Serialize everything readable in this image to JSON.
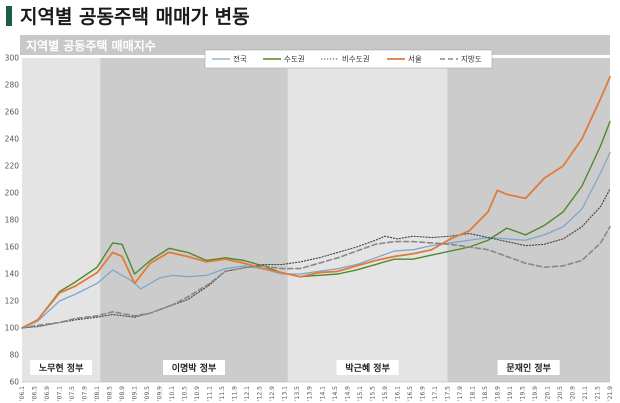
{
  "header": {
    "title": "지역별 공동주택 매매가 변동",
    "accent_color": "#1f5a4c"
  },
  "chart_data": {
    "type": "line",
    "title": "지역별 공동주택 매매지수",
    "ylim": [
      60,
      300
    ],
    "yticks": [
      60,
      80,
      100,
      120,
      140,
      160,
      180,
      200,
      220,
      240,
      260,
      280,
      300
    ],
    "x_range": [
      "'06.1",
      "'21.9"
    ],
    "x_tick_labels": [
      "'06.1",
      "'06.5",
      "'06.9",
      "'07.1",
      "'07.5",
      "'07.9",
      "'08.1",
      "'08.5",
      "'08.9",
      "'09.1",
      "'09.5",
      "'09.9",
      "'10.1",
      "'10.5",
      "'10.9",
      "'11.1",
      "'11.5",
      "'11.9",
      "'12.1",
      "'12.5",
      "'12.9",
      "'13.1",
      "'13.5",
      "'13.9",
      "'14.1",
      "'14.5",
      "'14.9",
      "'15.1",
      "'15.5",
      "'15.9",
      "'16.1",
      "'16.5",
      "'16.9",
      "'17.1",
      "'17.5",
      "'17.9",
      "'18.1",
      "'18.5",
      "'18.9",
      "'19.1",
      "'19.5",
      "'19.9",
      "'20.1",
      "'20.5",
      "'20.9",
      "'21.1",
      "'21.5",
      "'21.9"
    ],
    "grid": false,
    "legend_position": "top-center",
    "eras": [
      {
        "label": "노무현 정부",
        "start": "2006.01",
        "end": "2008.02",
        "shade": "#e4e4e4"
      },
      {
        "label": "이명박 정부",
        "start": "2008.02",
        "end": "2013.02",
        "shade": "#cccccc"
      },
      {
        "label": "박근혜 정부",
        "start": "2013.02",
        "end": "2017.05",
        "shade": "#e4e4e4"
      },
      {
        "label": "문재인 정부",
        "start": "2017.05",
        "end": "2021.09",
        "shade": "#cccccc"
      }
    ],
    "series": [
      {
        "name": "전국",
        "color": "#7fa7cc",
        "dash": "solid",
        "points": [
          [
            "2006.01",
            100
          ],
          [
            "2006.06",
            105
          ],
          [
            "2007.01",
            120
          ],
          [
            "2007.06",
            125
          ],
          [
            "2008.01",
            133
          ],
          [
            "2008.06",
            143
          ],
          [
            "2008.12",
            135
          ],
          [
            "2009.03",
            129
          ],
          [
            "2009.09",
            137
          ],
          [
            "2010.01",
            139
          ],
          [
            "2010.06",
            138
          ],
          [
            "2010.12",
            139
          ],
          [
            "2011.06",
            144
          ],
          [
            "2011.12",
            146
          ],
          [
            "2012.06",
            144
          ],
          [
            "2012.12",
            140
          ],
          [
            "2013.06",
            140
          ],
          [
            "2013.12",
            142
          ],
          [
            "2014.06",
            144
          ],
          [
            "2014.12",
            147
          ],
          [
            "2015.06",
            152
          ],
          [
            "2015.12",
            157
          ],
          [
            "2016.06",
            158
          ],
          [
            "2016.12",
            161
          ],
          [
            "2017.06",
            163
          ],
          [
            "2017.12",
            165
          ],
          [
            "2018.06",
            167
          ],
          [
            "2018.12",
            166
          ],
          [
            "2019.06",
            165
          ],
          [
            "2019.12",
            169
          ],
          [
            "2020.06",
            175
          ],
          [
            "2020.12",
            188
          ],
          [
            "2021.06",
            215
          ],
          [
            "2021.09",
            230
          ]
        ]
      },
      {
        "name": "수도권",
        "color": "#4e8a2c",
        "dash": "solid",
        "points": [
          [
            "2006.01",
            100
          ],
          [
            "2006.06",
            106
          ],
          [
            "2007.01",
            127
          ],
          [
            "2007.06",
            134
          ],
          [
            "2008.01",
            145
          ],
          [
            "2008.06",
            163
          ],
          [
            "2008.09",
            162
          ],
          [
            "2009.01",
            140
          ],
          [
            "2009.06",
            150
          ],
          [
            "2009.12",
            159
          ],
          [
            "2010.06",
            156
          ],
          [
            "2010.12",
            150
          ],
          [
            "2011.06",
            152
          ],
          [
            "2011.12",
            150
          ],
          [
            "2012.06",
            146
          ],
          [
            "2012.12",
            141
          ],
          [
            "2013.06",
            138
          ],
          [
            "2013.12",
            139
          ],
          [
            "2014.06",
            140
          ],
          [
            "2014.12",
            143
          ],
          [
            "2015.06",
            147
          ],
          [
            "2015.12",
            151
          ],
          [
            "2016.06",
            151
          ],
          [
            "2016.12",
            154
          ],
          [
            "2017.06",
            157
          ],
          [
            "2017.12",
            160
          ],
          [
            "2018.06",
            165
          ],
          [
            "2018.12",
            174
          ],
          [
            "2019.06",
            169
          ],
          [
            "2019.12",
            176
          ],
          [
            "2020.06",
            186
          ],
          [
            "2020.12",
            205
          ],
          [
            "2021.06",
            235
          ],
          [
            "2021.09",
            253
          ]
        ]
      },
      {
        "name": "비수도권",
        "color": "#444444",
        "dash": "dot",
        "points": [
          [
            "2006.01",
            100
          ],
          [
            "2006.06",
            101
          ],
          [
            "2007.01",
            104
          ],
          [
            "2007.06",
            106
          ],
          [
            "2008.01",
            108
          ],
          [
            "2008.06",
            110
          ],
          [
            "2009.01",
            108
          ],
          [
            "2009.06",
            111
          ],
          [
            "2010.01",
            117
          ],
          [
            "2010.06",
            121
          ],
          [
            "2011.01",
            132
          ],
          [
            "2011.06",
            142
          ],
          [
            "2012.01",
            145
          ],
          [
            "2012.06",
            147
          ],
          [
            "2012.12",
            147
          ],
          [
            "2013.06",
            149
          ],
          [
            "2013.12",
            152
          ],
          [
            "2014.06",
            156
          ],
          [
            "2014.12",
            160
          ],
          [
            "2015.06",
            165
          ],
          [
            "2015.09",
            168
          ],
          [
            "2016.01",
            166
          ],
          [
            "2016.06",
            168
          ],
          [
            "2016.12",
            167
          ],
          [
            "2017.06",
            168
          ],
          [
            "2017.12",
            170
          ],
          [
            "2018.06",
            167
          ],
          [
            "2018.12",
            164
          ],
          [
            "2019.06",
            161
          ],
          [
            "2019.12",
            162
          ],
          [
            "2020.06",
            166
          ],
          [
            "2020.12",
            175
          ],
          [
            "2021.06",
            190
          ],
          [
            "2021.09",
            203
          ]
        ]
      },
      {
        "name": "서울",
        "color": "#e07b39",
        "dash": "solid",
        "points": [
          [
            "2006.01",
            100
          ],
          [
            "2006.06",
            106
          ],
          [
            "2007.01",
            126
          ],
          [
            "2007.06",
            131
          ],
          [
            "2008.01",
            141
          ],
          [
            "2008.06",
            156
          ],
          [
            "2008.09",
            153
          ],
          [
            "2009.01",
            133
          ],
          [
            "2009.06",
            148
          ],
          [
            "2009.12",
            156
          ],
          [
            "2010.06",
            153
          ],
          [
            "2010.12",
            149
          ],
          [
            "2011.06",
            151
          ],
          [
            "2011.12",
            148
          ],
          [
            "2012.06",
            144
          ],
          [
            "2012.12",
            141
          ],
          [
            "2013.06",
            138
          ],
          [
            "2013.12",
            141
          ],
          [
            "2014.06",
            142
          ],
          [
            "2014.12",
            146
          ],
          [
            "2015.06",
            150
          ],
          [
            "2015.12",
            153
          ],
          [
            "2016.06",
            155
          ],
          [
            "2016.12",
            158
          ],
          [
            "2017.06",
            166
          ],
          [
            "2017.12",
            172
          ],
          [
            "2018.06",
            186
          ],
          [
            "2018.09",
            202
          ],
          [
            "2018.12",
            199
          ],
          [
            "2019.06",
            196
          ],
          [
            "2019.12",
            211
          ],
          [
            "2020.06",
            220
          ],
          [
            "2020.12",
            240
          ],
          [
            "2021.06",
            270
          ],
          [
            "2021.09",
            286
          ]
        ]
      },
      {
        "name": "지방도",
        "color": "#888888",
        "dash": "dash",
        "points": [
          [
            "2006.01",
            100
          ],
          [
            "2006.06",
            102
          ],
          [
            "2007.01",
            104
          ],
          [
            "2007.06",
            107
          ],
          [
            "2008.01",
            109
          ],
          [
            "2008.06",
            112
          ],
          [
            "2009.01",
            109
          ],
          [
            "2009.06",
            111
          ],
          [
            "2010.01",
            117
          ],
          [
            "2010.06",
            123
          ],
          [
            "2011.01",
            133
          ],
          [
            "2011.06",
            142
          ],
          [
            "2012.01",
            145
          ],
          [
            "2012.06",
            146
          ],
          [
            "2012.12",
            144
          ],
          [
            "2013.06",
            144
          ],
          [
            "2013.12",
            148
          ],
          [
            "2014.06",
            152
          ],
          [
            "2014.12",
            157
          ],
          [
            "2015.06",
            162
          ],
          [
            "2015.12",
            164
          ],
          [
            "2016.06",
            164
          ],
          [
            "2016.12",
            163
          ],
          [
            "2017.06",
            162
          ],
          [
            "2017.12",
            160
          ],
          [
            "2018.06",
            158
          ],
          [
            "2018.12",
            153
          ],
          [
            "2019.06",
            148
          ],
          [
            "2019.12",
            145
          ],
          [
            "2020.06",
            146
          ],
          [
            "2020.12",
            150
          ],
          [
            "2021.06",
            163
          ],
          [
            "2021.09",
            175
          ]
        ]
      }
    ]
  }
}
